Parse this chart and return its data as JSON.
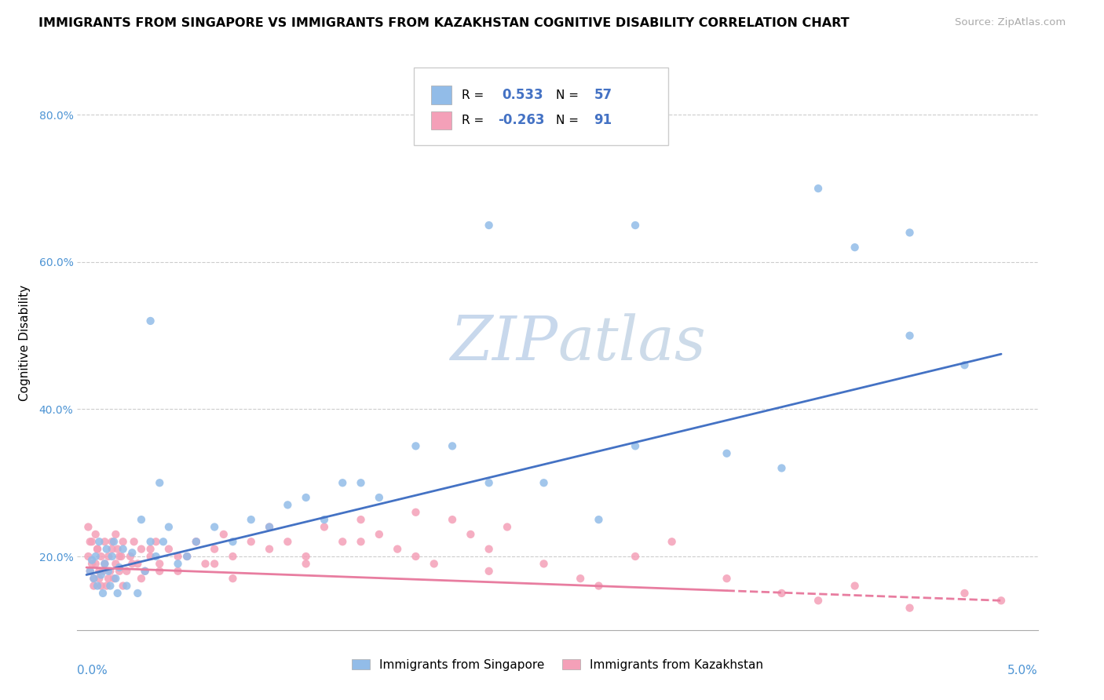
{
  "title": "IMMIGRANTS FROM SINGAPORE VS IMMIGRANTS FROM KAZAKHSTAN COGNITIVE DISABILITY CORRELATION CHART",
  "source": "Source: ZipAtlas.com",
  "ylabel": "Cognitive Disability",
  "legend1_r": "0.533",
  "legend1_n": "57",
  "legend2_r": "-0.263",
  "legend2_n": "91",
  "singapore_color": "#92bce8",
  "kazakhstan_color": "#f4a0b8",
  "singapore_line_color": "#4472c4",
  "kazakhstan_line_color": "#e87da0",
  "watermark_color": "#c8d8ec",
  "background_color": "#ffffff",
  "grid_color": "#cccccc",
  "ytick_color": "#4d94d4",
  "xlim": [
    -0.05,
    5.2
  ],
  "ylim": [
    10,
    88
  ],
  "yticks": [
    20,
    40,
    60,
    80
  ],
  "sg_line_x0": 0.0,
  "sg_line_y0": 17.5,
  "sg_line_x1": 5.0,
  "sg_line_y1": 47.5,
  "kz_line_x0": 0.0,
  "kz_line_y0": 18.5,
  "kz_line_x1": 5.0,
  "kz_line_y1": 14.0,
  "kz_dashed_start_x": 3.5,
  "sg_points_x": [
    0.02,
    0.03,
    0.04,
    0.05,
    0.06,
    0.07,
    0.08,
    0.09,
    0.1,
    0.11,
    0.12,
    0.13,
    0.14,
    0.15,
    0.16,
    0.17,
    0.18,
    0.2,
    0.22,
    0.25,
    0.28,
    0.3,
    0.32,
    0.35,
    0.38,
    0.4,
    0.42,
    0.45,
    0.5,
    0.55,
    0.6,
    0.7,
    0.8,
    0.9,
    1.0,
    1.1,
    1.2,
    1.3,
    1.4,
    1.5,
    1.6,
    1.8,
    2.0,
    2.2,
    2.5,
    2.8,
    3.0,
    3.5,
    3.8,
    4.0,
    4.2,
    4.5,
    4.5,
    4.8,
    3.0,
    2.2,
    0.35
  ],
  "sg_points_y": [
    18.0,
    19.5,
    17.0,
    20.0,
    16.0,
    22.0,
    17.5,
    15.0,
    19.0,
    21.0,
    18.0,
    16.0,
    20.0,
    22.0,
    17.0,
    15.0,
    18.5,
    21.0,
    16.0,
    20.5,
    15.0,
    25.0,
    18.0,
    22.0,
    20.0,
    30.0,
    22.0,
    24.0,
    19.0,
    20.0,
    22.0,
    24.0,
    22.0,
    25.0,
    24.0,
    27.0,
    28.0,
    25.0,
    30.0,
    30.0,
    28.0,
    35.0,
    35.0,
    30.0,
    30.0,
    25.0,
    35.0,
    34.0,
    32.0,
    70.0,
    62.0,
    50.0,
    64.0,
    46.0,
    65.0,
    65.0,
    52.0
  ],
  "kz_points_x": [
    0.01,
    0.02,
    0.03,
    0.04,
    0.05,
    0.06,
    0.07,
    0.08,
    0.09,
    0.1,
    0.11,
    0.12,
    0.13,
    0.14,
    0.15,
    0.16,
    0.17,
    0.18,
    0.19,
    0.2,
    0.22,
    0.24,
    0.26,
    0.28,
    0.3,
    0.32,
    0.35,
    0.38,
    0.4,
    0.45,
    0.5,
    0.55,
    0.6,
    0.65,
    0.7,
    0.75,
    0.8,
    0.9,
    1.0,
    1.1,
    1.2,
    1.3,
    1.4,
    1.5,
    1.6,
    1.7,
    1.8,
    1.9,
    2.0,
    2.1,
    2.2,
    2.3,
    2.5,
    2.7,
    3.0,
    3.2,
    3.5,
    3.8,
    4.0,
    4.2,
    4.5,
    4.8,
    5.0,
    0.01,
    0.02,
    0.03,
    0.04,
    0.05,
    0.06,
    0.07,
    0.08,
    0.1,
    0.12,
    0.14,
    0.16,
    0.18,
    0.2,
    0.25,
    0.3,
    0.35,
    0.4,
    0.5,
    0.6,
    0.7,
    0.8,
    1.0,
    1.2,
    1.5,
    1.8,
    2.2,
    2.8
  ],
  "kz_points_y": [
    20.0,
    18.0,
    22.0,
    16.0,
    19.0,
    21.0,
    17.0,
    20.0,
    18.0,
    22.0,
    16.0,
    20.0,
    18.0,
    22.0,
    17.0,
    19.0,
    21.0,
    18.0,
    20.0,
    22.0,
    18.0,
    20.0,
    22.0,
    19.0,
    21.0,
    18.0,
    20.0,
    22.0,
    19.0,
    21.0,
    18.0,
    20.0,
    22.0,
    19.0,
    21.0,
    23.0,
    20.0,
    22.0,
    24.0,
    22.0,
    20.0,
    24.0,
    22.0,
    25.0,
    23.0,
    21.0,
    26.0,
    19.0,
    25.0,
    23.0,
    21.0,
    24.0,
    19.0,
    17.0,
    20.0,
    22.0,
    17.0,
    15.0,
    14.0,
    16.0,
    13.0,
    15.0,
    14.0,
    24.0,
    22.0,
    19.0,
    17.0,
    23.0,
    21.0,
    18.0,
    16.0,
    19.0,
    17.0,
    21.0,
    23.0,
    20.0,
    16.0,
    19.0,
    17.0,
    21.0,
    18.0,
    20.0,
    22.0,
    19.0,
    17.0,
    21.0,
    19.0,
    22.0,
    20.0,
    18.0,
    16.0
  ]
}
